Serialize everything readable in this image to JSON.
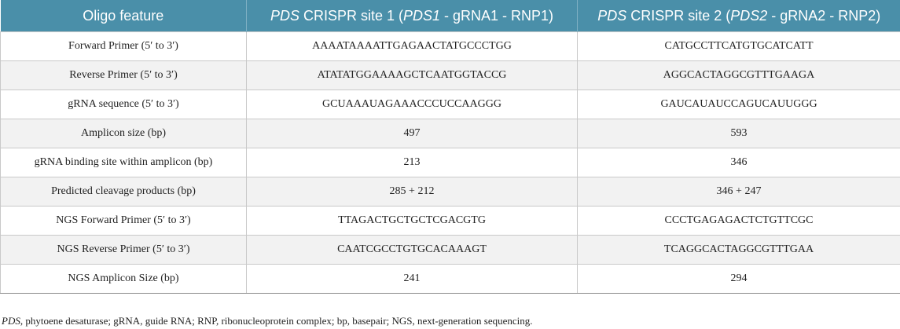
{
  "header": {
    "col1": "Oligo feature",
    "col2": {
      "gene": "PDS",
      "mid": " CRISPR site 1 (",
      "gene_short": "PDS1",
      "tail": " - gRNA1 - RNP1)"
    },
    "col3": {
      "gene": "PDS",
      "mid": " CRISPR site 2 (",
      "gene_short": "PDS2",
      "tail": " - gRNA2 - RNP2)"
    }
  },
  "rows": [
    {
      "feature": "Forward Primer (5′ to 3′)",
      "site1": "AAAATAAAATTGAGAACTATGCCCTGG",
      "site2": "CATGCCTTCATGTGCATCATT"
    },
    {
      "feature": "Reverse Primer (5′ to 3′)",
      "site1": "ATATATGGAAAAGCTCAATGGTACCG",
      "site2": "AGGCACTAGGCGTTTGAAGA"
    },
    {
      "feature": "gRNA sequence (5′ to 3′)",
      "site1": "GCUAAAUAGAAACCCUCCAAGGG",
      "site2": "GAUCAUAUCCAGUCAUUGGG"
    },
    {
      "feature": "Amplicon size (bp)",
      "site1": "497",
      "site2": "593"
    },
    {
      "feature": "gRNA binding site within amplicon (bp)",
      "site1": "213",
      "site2": "346"
    },
    {
      "feature": "Predicted cleavage products (bp)",
      "site1": "285 + 212",
      "site2": "346 + 247"
    },
    {
      "feature": "NGS Forward Primer (5′ to 3′)",
      "site1": "TTAGACTGCTGCTCGACGTG",
      "site2": "CCCTGAGAGACTCTGTTCGC"
    },
    {
      "feature": "NGS Reverse Primer (5′ to 3′)",
      "site1": "CAATCGCCTGTGCACAAAGT",
      "site2": "TCAGGCACTAGGCGTTTGAA"
    },
    {
      "feature": "NGS Amplicon Size (bp)",
      "site1": "241",
      "site2": "294"
    }
  ],
  "footnote": {
    "abbr": "PDS",
    "text": ", phytoene desaturase; gRNA, guide RNA; RNP, ribonucleoprotein complex; bp, basepair; NGS, next-generation sequencing."
  }
}
